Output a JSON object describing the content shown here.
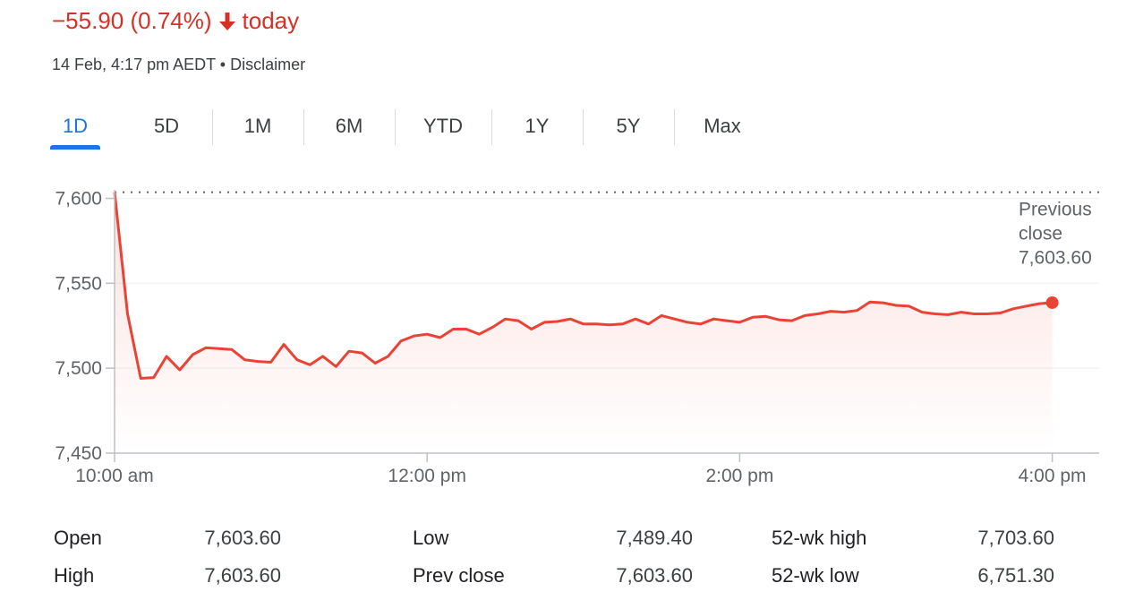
{
  "header": {
    "change_text": "−55.90 (0.74%)",
    "period_text": "today",
    "arrow_icon": "arrow-down-icon",
    "color": "#d93025",
    "timestamp": "14 Feb, 4:17 pm AEDT • Disclaimer"
  },
  "tabs": [
    {
      "label": "1D",
      "active": true
    },
    {
      "label": "5D"
    },
    {
      "label": "1M"
    },
    {
      "label": "6M"
    },
    {
      "label": "YTD"
    },
    {
      "label": "1Y"
    },
    {
      "label": "5Y"
    },
    {
      "label": "Max"
    }
  ],
  "chart_data": {
    "type": "area",
    "line_color": "#ea4335",
    "ylim": [
      7450,
      7605
    ],
    "y_ticks": [
      7450,
      7500,
      7550,
      7600
    ],
    "y_tick_labels": [
      "7,450",
      "7,500",
      "7,550",
      "7,600"
    ],
    "x_range": [
      10,
      16.3
    ],
    "x_ticks": [
      10,
      12,
      14,
      16
    ],
    "x_tick_labels": [
      "10:00 am",
      "12:00 pm",
      "2:00 pm",
      "4:00 pm"
    ],
    "grid": true,
    "previous_close": {
      "value": 7603.6,
      "label_lines": [
        "Previous",
        "close",
        "7,603.60"
      ]
    },
    "series": [
      {
        "x": [
          10.0,
          10.083,
          10.167,
          10.25,
          10.333,
          10.417,
          10.5,
          10.583,
          10.667,
          10.75,
          10.833,
          10.917,
          11.0,
          11.083,
          11.167,
          11.25,
          11.333,
          11.417,
          11.5,
          11.583,
          11.667,
          11.75,
          11.833,
          11.917,
          12.0,
          12.083,
          12.167,
          12.25,
          12.333,
          12.417,
          12.5,
          12.583,
          12.667,
          12.75,
          12.833,
          12.917,
          13.0,
          13.083,
          13.167,
          13.25,
          13.333,
          13.417,
          13.5,
          13.583,
          13.667,
          13.75,
          13.833,
          13.917,
          14.0,
          14.083,
          14.167,
          14.25,
          14.333,
          14.417,
          14.5,
          14.583,
          14.667,
          14.75,
          14.833,
          14.917,
          15.0,
          15.083,
          15.167,
          15.25,
          15.333,
          15.417,
          15.5,
          15.583,
          15.667,
          15.75,
          15.833,
          15.917,
          16.0
        ],
        "y": [
          7603.6,
          7532,
          7494,
          7494.5,
          7507,
          7499,
          7508,
          7512,
          7511.5,
          7511,
          7505,
          7504,
          7503.5,
          7514,
          7505,
          7502,
          7507,
          7501,
          7510,
          7509,
          7503,
          7507,
          7516,
          7519,
          7520,
          7518,
          7523,
          7523,
          7520,
          7524,
          7529,
          7528,
          7523,
          7527,
          7527.5,
          7529,
          7526,
          7526,
          7525.5,
          7526,
          7529,
          7526,
          7531,
          7529,
          7527,
          7526,
          7529,
          7528,
          7527,
          7530,
          7530.5,
          7528.5,
          7528,
          7531,
          7532,
          7533.5,
          7533,
          7534,
          7539,
          7538.5,
          7537,
          7536.5,
          7533,
          7532,
          7531.5,
          7533,
          7532,
          7532,
          7532.5,
          7535,
          7536.5,
          7538,
          7538.6
        ]
      }
    ]
  },
  "stats": [
    [
      {
        "label": "Open",
        "value": "7,603.60"
      },
      {
        "label": "Low",
        "value": "7,489.40"
      },
      {
        "label": "52-wk high",
        "value": "7,703.60"
      }
    ],
    [
      {
        "label": "High",
        "value": "7,603.60"
      },
      {
        "label": "Prev close",
        "value": "7,603.60"
      },
      {
        "label": "52-wk low",
        "value": "6,751.30"
      }
    ]
  ]
}
